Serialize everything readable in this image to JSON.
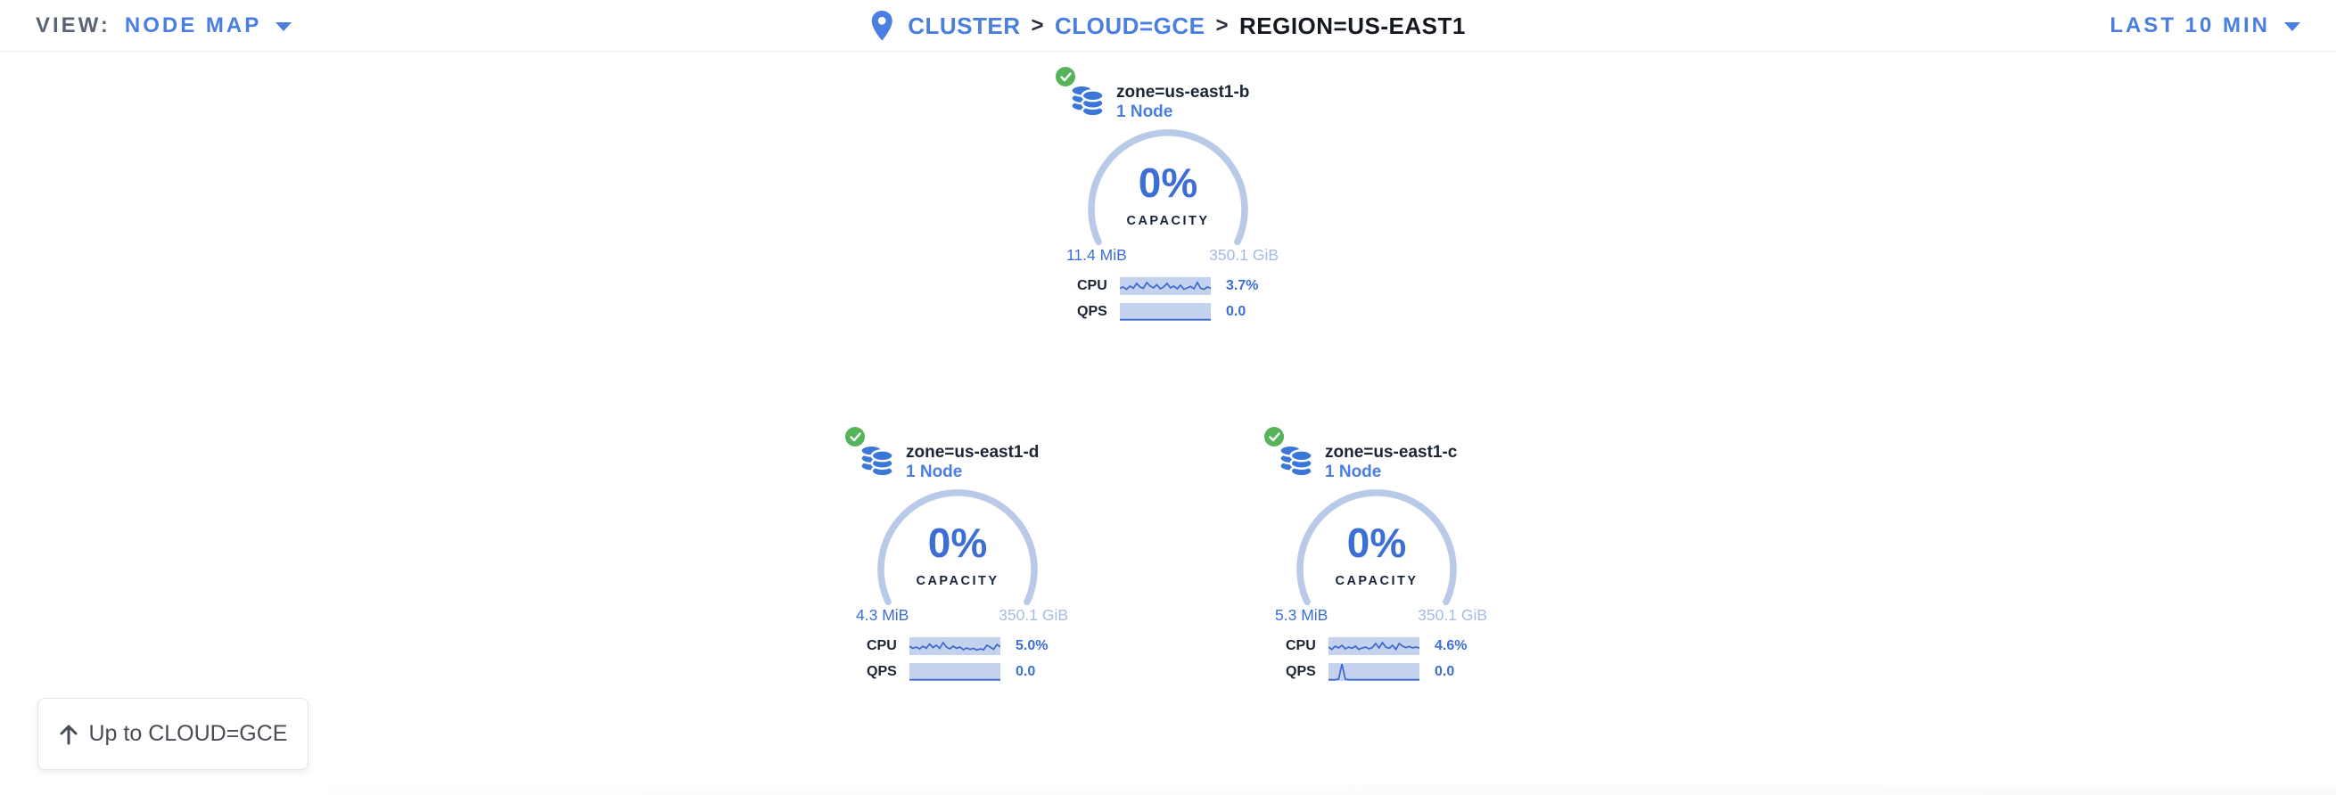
{
  "topbar": {
    "view_label": "VIEW:",
    "view_value": "NODE MAP",
    "separator": ">",
    "breadcrumb": [
      {
        "label": "CLUSTER"
      },
      {
        "label": "CLOUD=GCE"
      },
      {
        "label": "REGION=US-EAST1"
      }
    ],
    "time_range": "LAST 10 MIN"
  },
  "cards": [
    {
      "title": "zone=us-east1-b",
      "subtitle": "1 Node",
      "status": "healthy",
      "capacity_percent": "0%",
      "capacity_label": "CAPACITY",
      "used": "11.4 MiB",
      "total": "350.1 GiB",
      "cpu_label": "CPU",
      "cpu_value": "3.7%",
      "qps_label": "QPS",
      "qps_value": "0.0",
      "cpu_spark": [
        0.62,
        0.55,
        0.68,
        0.5,
        0.62,
        0.35,
        0.55,
        0.62,
        0.3,
        0.5,
        0.6,
        0.42,
        0.65,
        0.55,
        0.35,
        0.6,
        0.5,
        0.65,
        0.45,
        0.68,
        0.6,
        0.52,
        0.65,
        0.3,
        0.62,
        0.68,
        0.55,
        0.62
      ],
      "qps_spark": [
        0.93,
        0.93,
        0.93,
        0.93,
        0.93,
        0.93,
        0.93,
        0.93,
        0.93,
        0.93,
        0.93,
        0.93,
        0.93,
        0.93,
        0.93,
        0.93,
        0.93,
        0.93,
        0.93,
        0.93,
        0.93,
        0.93,
        0.93,
        0.93,
        0.93,
        0.93,
        0.93,
        0.93
      ]
    },
    {
      "title": "zone=us-east1-d",
      "subtitle": "1 Node",
      "status": "healthy",
      "capacity_percent": "0%",
      "capacity_label": "CAPACITY",
      "used": "4.3 MiB",
      "total": "350.1 GiB",
      "cpu_label": "CPU",
      "cpu_value": "5.0%",
      "qps_label": "QPS",
      "qps_value": "0.0",
      "cpu_spark": [
        0.5,
        0.62,
        0.55,
        0.65,
        0.5,
        0.62,
        0.38,
        0.58,
        0.45,
        0.62,
        0.3,
        0.55,
        0.65,
        0.5,
        0.62,
        0.55,
        0.7,
        0.6,
        0.68,
        0.62,
        0.72,
        0.65,
        0.7,
        0.45,
        0.55,
        0.68,
        0.4,
        0.55
      ],
      "qps_spark": [
        0.93,
        0.93,
        0.93,
        0.93,
        0.93,
        0.93,
        0.93,
        0.93,
        0.93,
        0.93,
        0.93,
        0.93,
        0.93,
        0.93,
        0.93,
        0.93,
        0.93,
        0.93,
        0.93,
        0.93,
        0.93,
        0.93,
        0.93,
        0.93,
        0.93,
        0.93,
        0.93,
        0.93
      ]
    },
    {
      "title": "zone=us-east1-c",
      "subtitle": "1 Node",
      "status": "healthy",
      "capacity_percent": "0%",
      "capacity_label": "CAPACITY",
      "used": "5.3 MiB",
      "total": "350.1 GiB",
      "cpu_label": "CPU",
      "cpu_value": "4.6%",
      "qps_label": "QPS",
      "qps_value": "0.0",
      "cpu_spark": [
        0.55,
        0.68,
        0.5,
        0.6,
        0.45,
        0.65,
        0.55,
        0.62,
        0.5,
        0.68,
        0.6,
        0.55,
        0.65,
        0.58,
        0.35,
        0.6,
        0.3,
        0.55,
        0.62,
        0.45,
        0.68,
        0.35,
        0.5,
        0.58,
        0.52,
        0.6,
        0.55,
        0.6
      ],
      "qps_spark": [
        0.93,
        0.93,
        0.93,
        0.9,
        0.06,
        0.9,
        0.93,
        0.93,
        0.93,
        0.93,
        0.93,
        0.93,
        0.93,
        0.93,
        0.93,
        0.93,
        0.93,
        0.93,
        0.93,
        0.93,
        0.93,
        0.93,
        0.93,
        0.93,
        0.93,
        0.93,
        0.93,
        0.93
      ]
    }
  ],
  "up_button": {
    "label": "Up to CLOUD=GCE"
  },
  "colors": {
    "link_blue": "#4a7ee0",
    "value_blue": "#3d6ed4",
    "arc_blue": "#b9c9e8",
    "total_blue": "#a7bbe4",
    "spark_bg": "#c5d2ee",
    "spark_line": "#3d68cf",
    "healthy_green": "#57b359",
    "icon_blue": "#3b77d8",
    "dark_text": "#1b2533"
  }
}
